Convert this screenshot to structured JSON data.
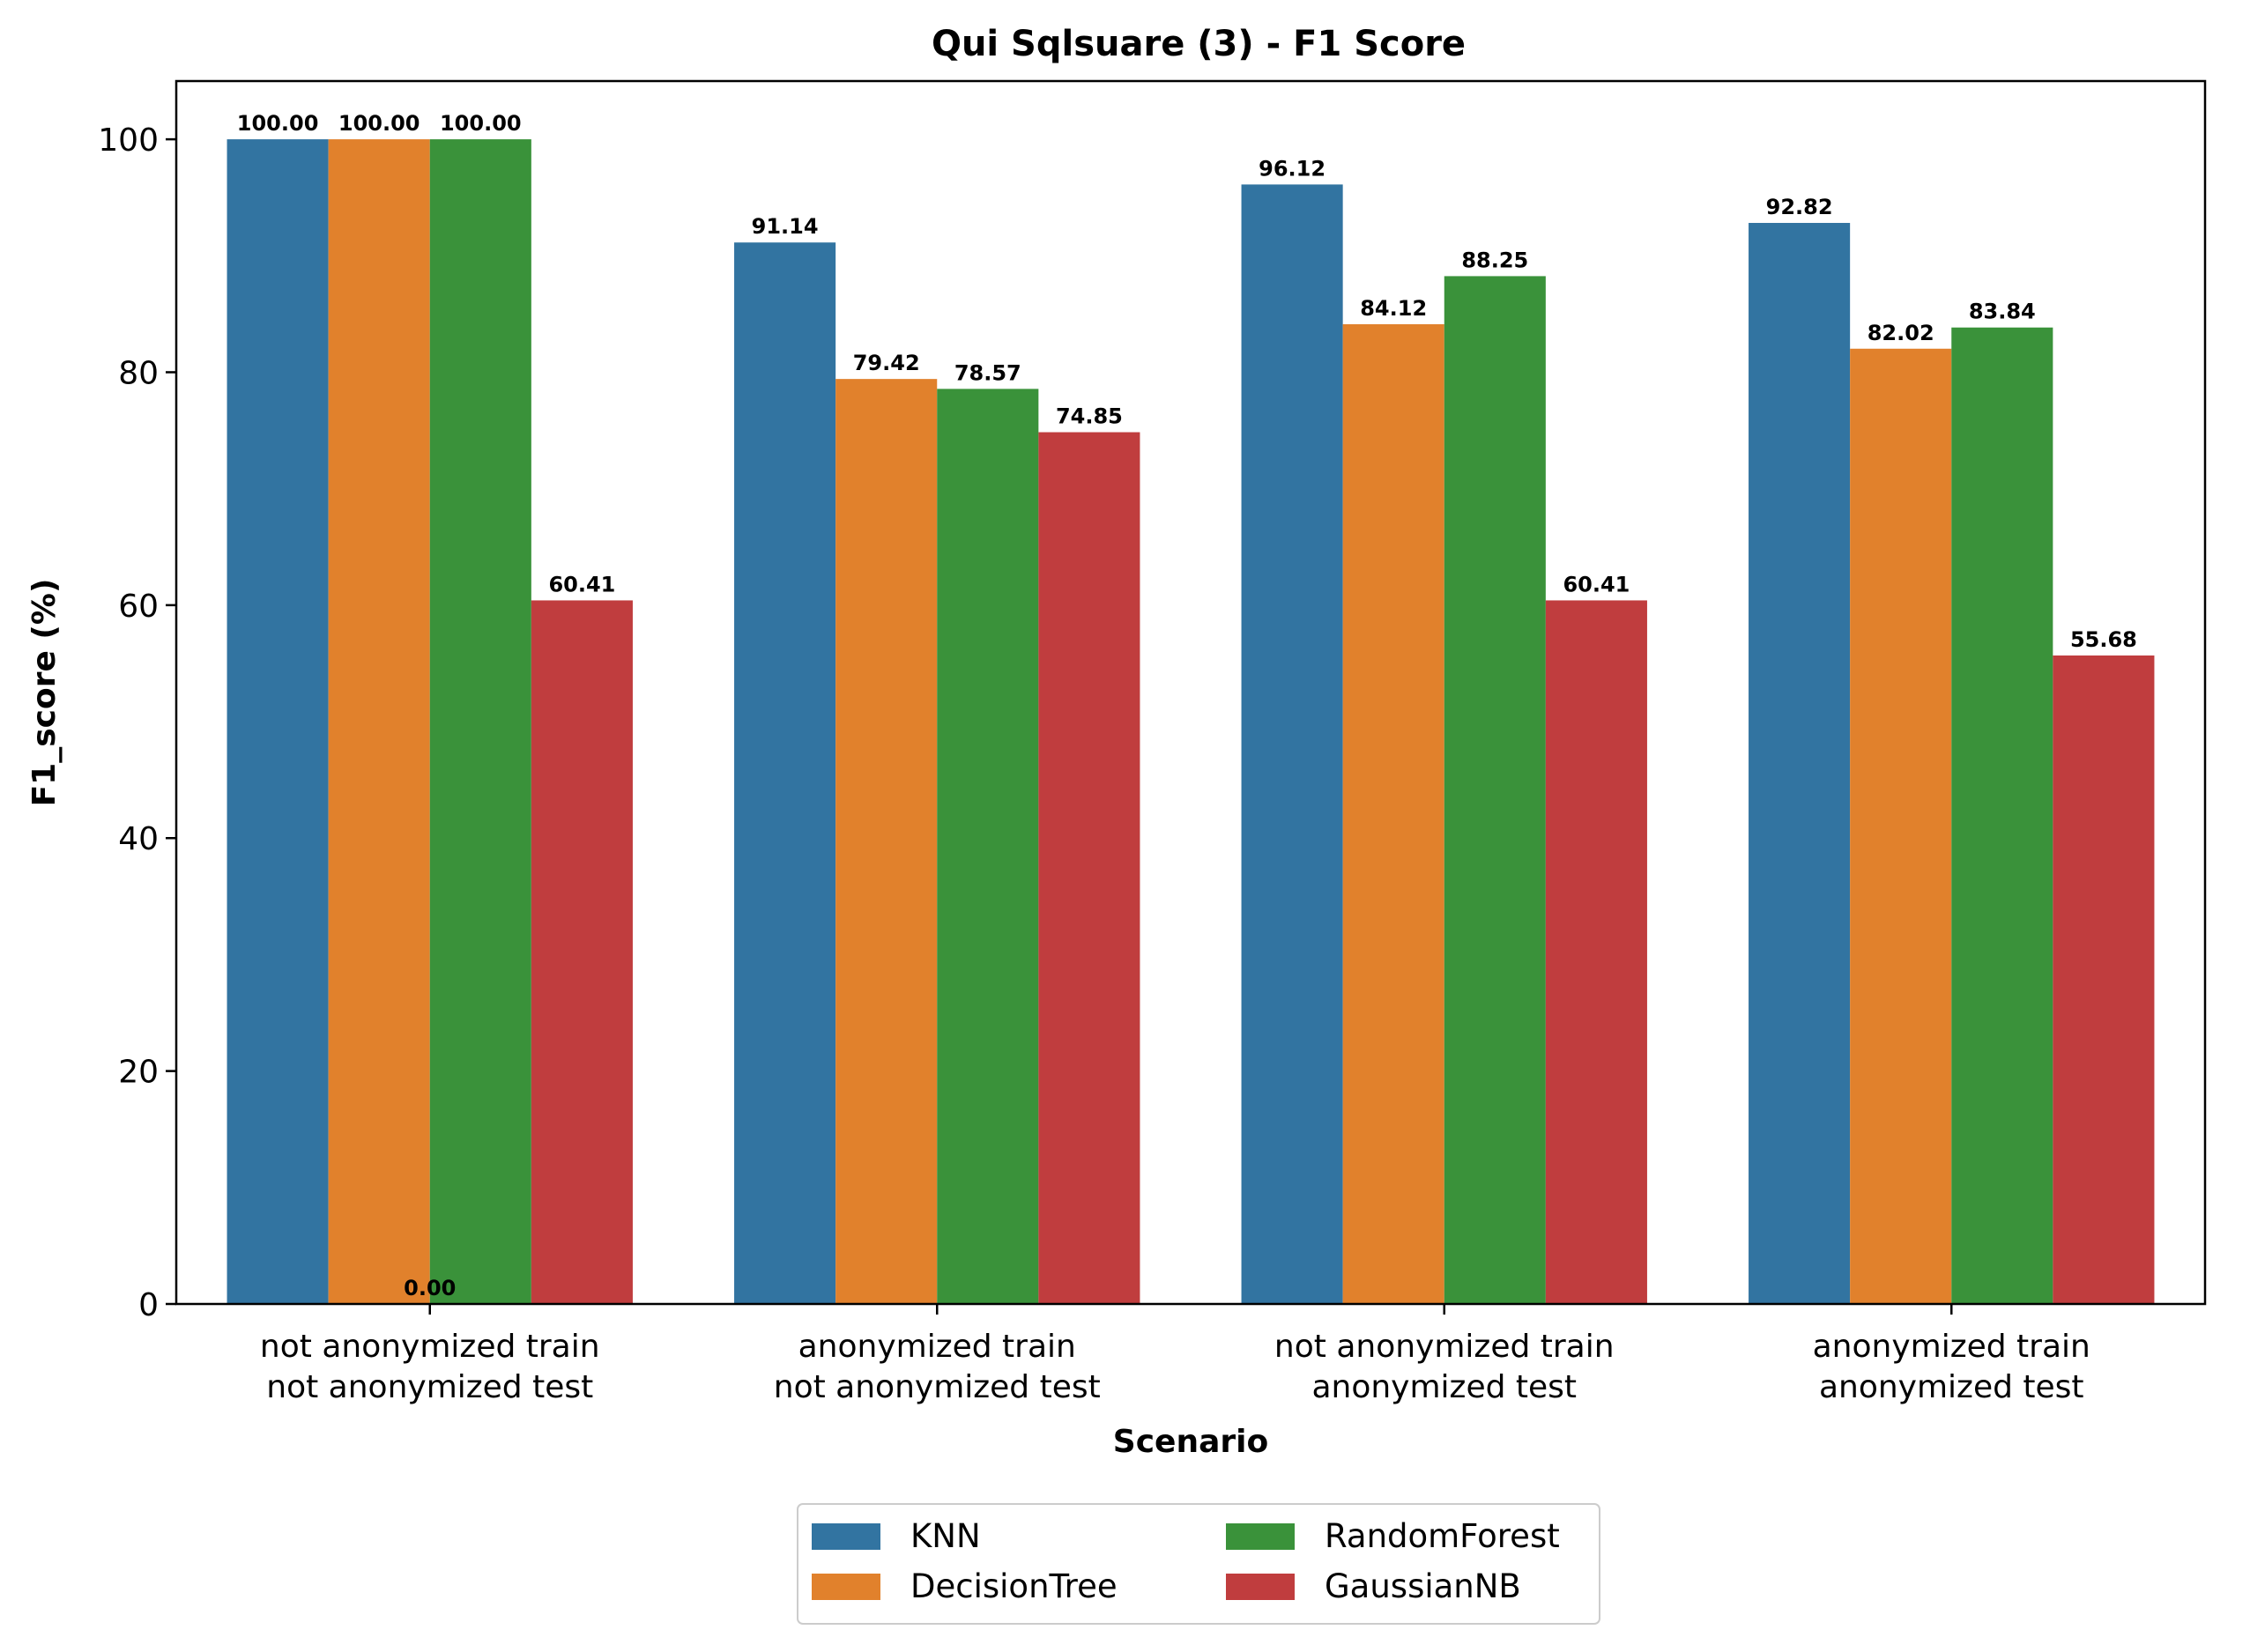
{
  "chart_data": {
    "type": "bar",
    "title": "Qui Sqlsuare (3) - F1 Score",
    "xlabel": "Scenario",
    "ylabel": "F1_score (%)",
    "ylim": [
      0,
      105
    ],
    "yticks": [
      0,
      20,
      40,
      60,
      80,
      100
    ],
    "categories": [
      [
        "not anonymized train",
        "not anonymized test"
      ],
      [
        "anonymized train",
        "not anonymized test"
      ],
      [
        "not anonymized train",
        "anonymized test"
      ],
      [
        "anonymized train",
        "anonymized test"
      ]
    ],
    "series": [
      {
        "name": "KNN",
        "color": "#3274a1",
        "values": [
          100.0,
          91.14,
          96.12,
          92.82
        ]
      },
      {
        "name": "DecisionTree",
        "color": "#e1812c",
        "values": [
          100.0,
          79.42,
          84.12,
          82.02
        ]
      },
      {
        "name": "RandomForest",
        "color": "#3a923a",
        "values": [
          100.0,
          78.57,
          88.25,
          83.84
        ]
      },
      {
        "name": "GaussianNB",
        "color": "#c03d3e",
        "values": [
          60.41,
          74.85,
          60.41,
          55.68
        ]
      }
    ],
    "extra_annotations": [
      {
        "text": "0.00",
        "category_index": 0,
        "y": 0
      }
    ],
    "legend": {
      "placement": "bottom-center",
      "columns": 2
    },
    "grid": false
  }
}
